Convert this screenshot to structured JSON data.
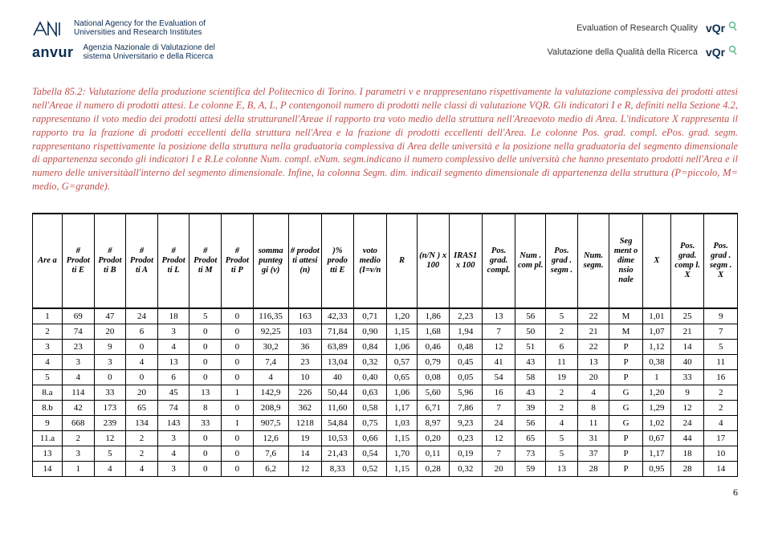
{
  "header": {
    "agency_en": "National Agency for the Evaluation of Universities and Research Institutes",
    "anvur_name": "anvur",
    "agency_it": "Agenzia Nazionale di Valutazione del sistema Universitario e della Ricerca",
    "eval_en": "Evaluation of Research Quality",
    "eval_it": "Valutazione della Qualità della Ricerca",
    "vqr": "vQr"
  },
  "caption": "Tabella 85.2: Valutazione della produzione scientifica del Politecnico di Torino. I parametri v e nrappresentano rispettivamente la valutazione complessiva dei prodotti attesi nell'Areae il numero di prodotti attesi. Le colonne E, B, A, L, P contengonoil numero di prodotti nelle classi di valutazione VQR. Gli indicatori I e R, definiti nella Sezione 4.2, rappresentano il voto medio dei prodotti attesi della strutturanell'Areae il rapporto tra voto medio della struttura nell'Areaevoto medio di Area. L'indicatore X rappresenta il rapporto tra la frazione di prodotti eccellenti della struttura nell'Area e la frazione di prodotti eccellenti dell'Area. Le colonne Pos. grad. compl. ePos. grad. segm. rappresentano rispettivamente la posizione della struttura nella graduatoria complessiva di Area delle università e la posizione nella graduatoria del segmento dimensionale di appartenenza secondo gli indicatori I e R.Le colonne Num. compl. eNum. segm.indicano il numero complessivo delle università che hanno presentato prodotti nell'Area e il numero delle universitàall'interno del segmento dimensionale. Infine, la colonna Segm. dim. indicail segmento dimensionale di appartenenza della struttura (P=piccolo, M= medio, G=grande).",
  "columns": [
    "Are a",
    "# Prodot ti E",
    "# Prodot ti B",
    "# Prodot ti A",
    "# Prodot ti L",
    "# Prodot ti M",
    "# Prodot ti P",
    "somma punteg gi (v)",
    "# prodot ti attesi (n)",
    ")% prodo tti E",
    "voto medio (I=v/n",
    "R",
    "(n/N ) x 100",
    "IRAS1 x 100",
    "Pos. grad. compl.",
    "Num . com pl.",
    "Pos. grad . segm .",
    "Num. segm.",
    "Seg ment o dime nsio nale",
    "X",
    "Pos. grad. comp l. X",
    "Pos. grad . segm . X"
  ],
  "col_widths": [
    "4.2%",
    "4.5%",
    "4.5%",
    "4.5%",
    "4.5%",
    "4.5%",
    "4.5%",
    "5%",
    "4.7%",
    "4.5%",
    "4.7%",
    "4.3%",
    "4.5%",
    "4.7%",
    "4.7%",
    "4.3%",
    "4.5%",
    "4.5%",
    "4.7%",
    "4%",
    "4.7%",
    "4.7%"
  ],
  "rows": [
    [
      "1",
      "69",
      "47",
      "24",
      "18",
      "5",
      "0",
      "116,35",
      "163",
      "42,33",
      "0,71",
      "1,20",
      "1,86",
      "2,23",
      "13",
      "56",
      "5",
      "22",
      "M",
      "1,01",
      "25",
      "9"
    ],
    [
      "2",
      "74",
      "20",
      "6",
      "3",
      "0",
      "0",
      "92,25",
      "103",
      "71,84",
      "0,90",
      "1,15",
      "1,68",
      "1,94",
      "7",
      "50",
      "2",
      "21",
      "M",
      "1,07",
      "21",
      "7"
    ],
    [
      "3",
      "23",
      "9",
      "0",
      "4",
      "0",
      "0",
      "30,2",
      "36",
      "63,89",
      "0,84",
      "1,06",
      "0,46",
      "0,48",
      "12",
      "51",
      "6",
      "22",
      "P",
      "1,12",
      "14",
      "5"
    ],
    [
      "4",
      "3",
      "3",
      "4",
      "13",
      "0",
      "0",
      "7,4",
      "23",
      "13,04",
      "0,32",
      "0,57",
      "0,79",
      "0,45",
      "41",
      "43",
      "11",
      "13",
      "P",
      "0,38",
      "40",
      "11"
    ],
    [
      "5",
      "4",
      "0",
      "0",
      "6",
      "0",
      "0",
      "4",
      "10",
      "40",
      "0,40",
      "0,65",
      "0,08",
      "0,05",
      "54",
      "58",
      "19",
      "20",
      "P",
      "1",
      "33",
      "16"
    ],
    [
      "8.a",
      "114",
      "33",
      "20",
      "45",
      "13",
      "1",
      "142,9",
      "226",
      "50,44",
      "0,63",
      "1,06",
      "5,60",
      "5,96",
      "16",
      "43",
      "2",
      "4",
      "G",
      "1,20",
      "9",
      "2"
    ],
    [
      "8.b",
      "42",
      "173",
      "65",
      "74",
      "8",
      "0",
      "208,9",
      "362",
      "11,60",
      "0,58",
      "1,17",
      "6,71",
      "7,86",
      "7",
      "39",
      "2",
      "8",
      "G",
      "1,29",
      "12",
      "2"
    ],
    [
      "9",
      "668",
      "239",
      "134",
      "143",
      "33",
      "1",
      "907,5",
      "1218",
      "54,84",
      "0,75",
      "1,03",
      "8,97",
      "9,23",
      "24",
      "56",
      "4",
      "11",
      "G",
      "1,02",
      "24",
      "4"
    ],
    [
      "11.a",
      "2",
      "12",
      "2",
      "3",
      "0",
      "0",
      "12,6",
      "19",
      "10,53",
      "0,66",
      "1,15",
      "0,20",
      "0,23",
      "12",
      "65",
      "5",
      "31",
      "P",
      "0,67",
      "44",
      "17"
    ],
    [
      "13",
      "3",
      "5",
      "2",
      "4",
      "0",
      "0",
      "7,6",
      "14",
      "21,43",
      "0,54",
      "1,70",
      "0,11",
      "0,19",
      "7",
      "73",
      "5",
      "37",
      "P",
      "1,17",
      "18",
      "10"
    ],
    [
      "14",
      "1",
      "4",
      "4",
      "3",
      "0",
      "0",
      "6,2",
      "12",
      "8,33",
      "0,52",
      "1,15",
      "0,28",
      "0,32",
      "20",
      "59",
      "13",
      "28",
      "P",
      "0,95",
      "28",
      "14"
    ]
  ],
  "page_number": "6",
  "colors": {
    "caption": "#c0504d",
    "anvur": "#0b2d52"
  }
}
